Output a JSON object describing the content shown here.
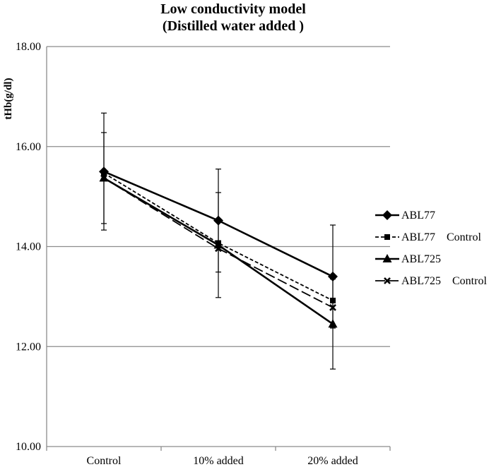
{
  "chart_data": {
    "type": "line",
    "title": "Low conductivity model",
    "subtitle": "(Distilled water added )",
    "xlabel": "",
    "ylabel": "tHb(g/dl)",
    "ylim": [
      10,
      18
    ],
    "yticks": [
      "10.00",
      "12.00",
      "14.00",
      "16.00",
      "18.00"
    ],
    "categories": [
      "Control",
      "10% added",
      "20% added"
    ],
    "grid": true,
    "legend_position": "right",
    "series": [
      {
        "name": "ABL77",
        "values": [
          15.5,
          14.52,
          13.4
        ],
        "error": [
          1.17,
          1.03,
          1.03
        ],
        "line_style": "solid",
        "marker": "diamond",
        "color": "#000000"
      },
      {
        "name": "ABL77    Control",
        "values": [
          15.47,
          14.07,
          12.92
        ],
        "error": [
          null,
          null,
          null
        ],
        "line_style": "short-dash",
        "marker": "square",
        "color": "#000000"
      },
      {
        "name": "ABL725",
        "values": [
          15.37,
          14.03,
          12.45
        ],
        "error": [
          0.91,
          1.05,
          0.9
        ],
        "line_style": "solid",
        "marker": "triangle",
        "color": "#000000"
      },
      {
        "name": "ABL725    Control",
        "values": [
          15.37,
          13.96,
          12.78
        ],
        "error": [
          null,
          null,
          null
        ],
        "line_style": "long-dash",
        "marker": "x",
        "color": "#000000"
      }
    ]
  }
}
